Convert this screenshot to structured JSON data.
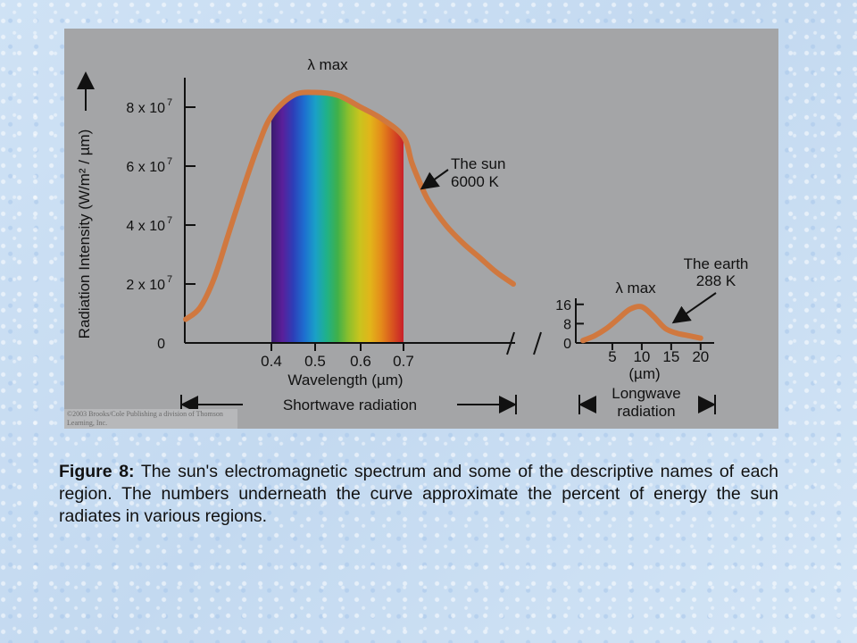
{
  "caption": {
    "label": "Figure 8:",
    "text": " The sun's electromagnetic spectrum and some of the descriptive names of each region. The numbers underneath the curve approximate the percent of energy the sun radiates in various regions."
  },
  "copyright": "©2003 Brooks/Cole Publishing a division of Thomson Learning, Inc.",
  "colors": {
    "panel": "#a4a5a7",
    "curve": "#d0783f",
    "axis": "#111111"
  },
  "chart_data": [
    {
      "type": "line",
      "ylabel": "Radiation Intensity (W/m² / µm)",
      "xlabel": "Wavelength (µm)",
      "region_label": "Shortwave radiation",
      "xlim": [
        0.1,
        2.0
      ],
      "ylim": [
        0,
        90000000
      ],
      "x_ticks": [
        0.4,
        0.5,
        0.6,
        0.7
      ],
      "x_tick_labels": [
        "0.4",
        "0.5",
        "0.6",
        "0.7"
      ],
      "y_ticks": [
        0,
        20000000,
        40000000,
        60000000,
        80000000
      ],
      "y_tick_labels": [
        {
          "base": "0",
          "exp": ""
        },
        {
          "base": "2 x 10",
          "exp": "7"
        },
        {
          "base": "4 x 10",
          "exp": "7"
        },
        {
          "base": "6 x 10",
          "exp": "7"
        },
        {
          "base": "8 x 10",
          "exp": "7"
        }
      ],
      "visible_spectrum": {
        "from": 0.4,
        "to": 0.7,
        "colors": [
          "#3a1b6e",
          "#5a1f9a",
          "#2c3fb8",
          "#1d6fd0",
          "#1aa0c8",
          "#1fb18a",
          "#3fb04a",
          "#8cbf2c",
          "#c8c41e",
          "#e2b41a",
          "#e48a1a",
          "#d8531f",
          "#c8202a"
        ]
      },
      "series": [
        {
          "name": "The sun",
          "annotation": [
            "The sun",
            "6000 K"
          ],
          "points": [
            [
              0.1,
              8000000
            ],
            [
              0.15,
              12000000
            ],
            [
              0.2,
              22000000
            ],
            [
              0.25,
              37000000
            ],
            [
              0.3,
              52000000
            ],
            [
              0.35,
              66000000
            ],
            [
              0.4,
              77000000
            ],
            [
              0.45,
              84000000
            ],
            [
              0.5,
              85000000
            ],
            [
              0.55,
              84000000
            ],
            [
              0.6,
              80000000
            ],
            [
              0.65,
              76000000
            ],
            [
              0.7,
              70000000
            ],
            [
              0.8,
              61000000
            ],
            [
              0.9,
              54000000
            ],
            [
              1.0,
              48000000
            ],
            [
              1.2,
              40000000
            ],
            [
              1.4,
              34000000
            ],
            [
              1.6,
              29000000
            ],
            [
              1.8,
              24000000
            ],
            [
              2.0,
              20000000
            ]
          ]
        }
      ],
      "peak_label": "λ max"
    },
    {
      "type": "line",
      "xlabel": "(µm)",
      "region_label": [
        "Longwave",
        "radiation"
      ],
      "xlim": [
        0,
        22
      ],
      "ylim": [
        0,
        20
      ],
      "x_ticks": [
        5,
        10,
        15,
        20
      ],
      "x_tick_labels": [
        "5",
        "10",
        "15",
        "20"
      ],
      "y_ticks": [
        0,
        8,
        16
      ],
      "y_tick_labels": [
        "0",
        "8",
        "16"
      ],
      "series": [
        {
          "name": "The earth",
          "annotation": [
            "The earth",
            "288 K"
          ],
          "points": [
            [
              0,
              1
            ],
            [
              2,
              3
            ],
            [
              4,
              6
            ],
            [
              6,
              10
            ],
            [
              8,
              14
            ],
            [
              10,
              15
            ],
            [
              12,
              11
            ],
            [
              14,
              6
            ],
            [
              16,
              4
            ],
            [
              18,
              3
            ],
            [
              20,
              2
            ]
          ]
        }
      ],
      "peak_label": "λ max"
    }
  ]
}
